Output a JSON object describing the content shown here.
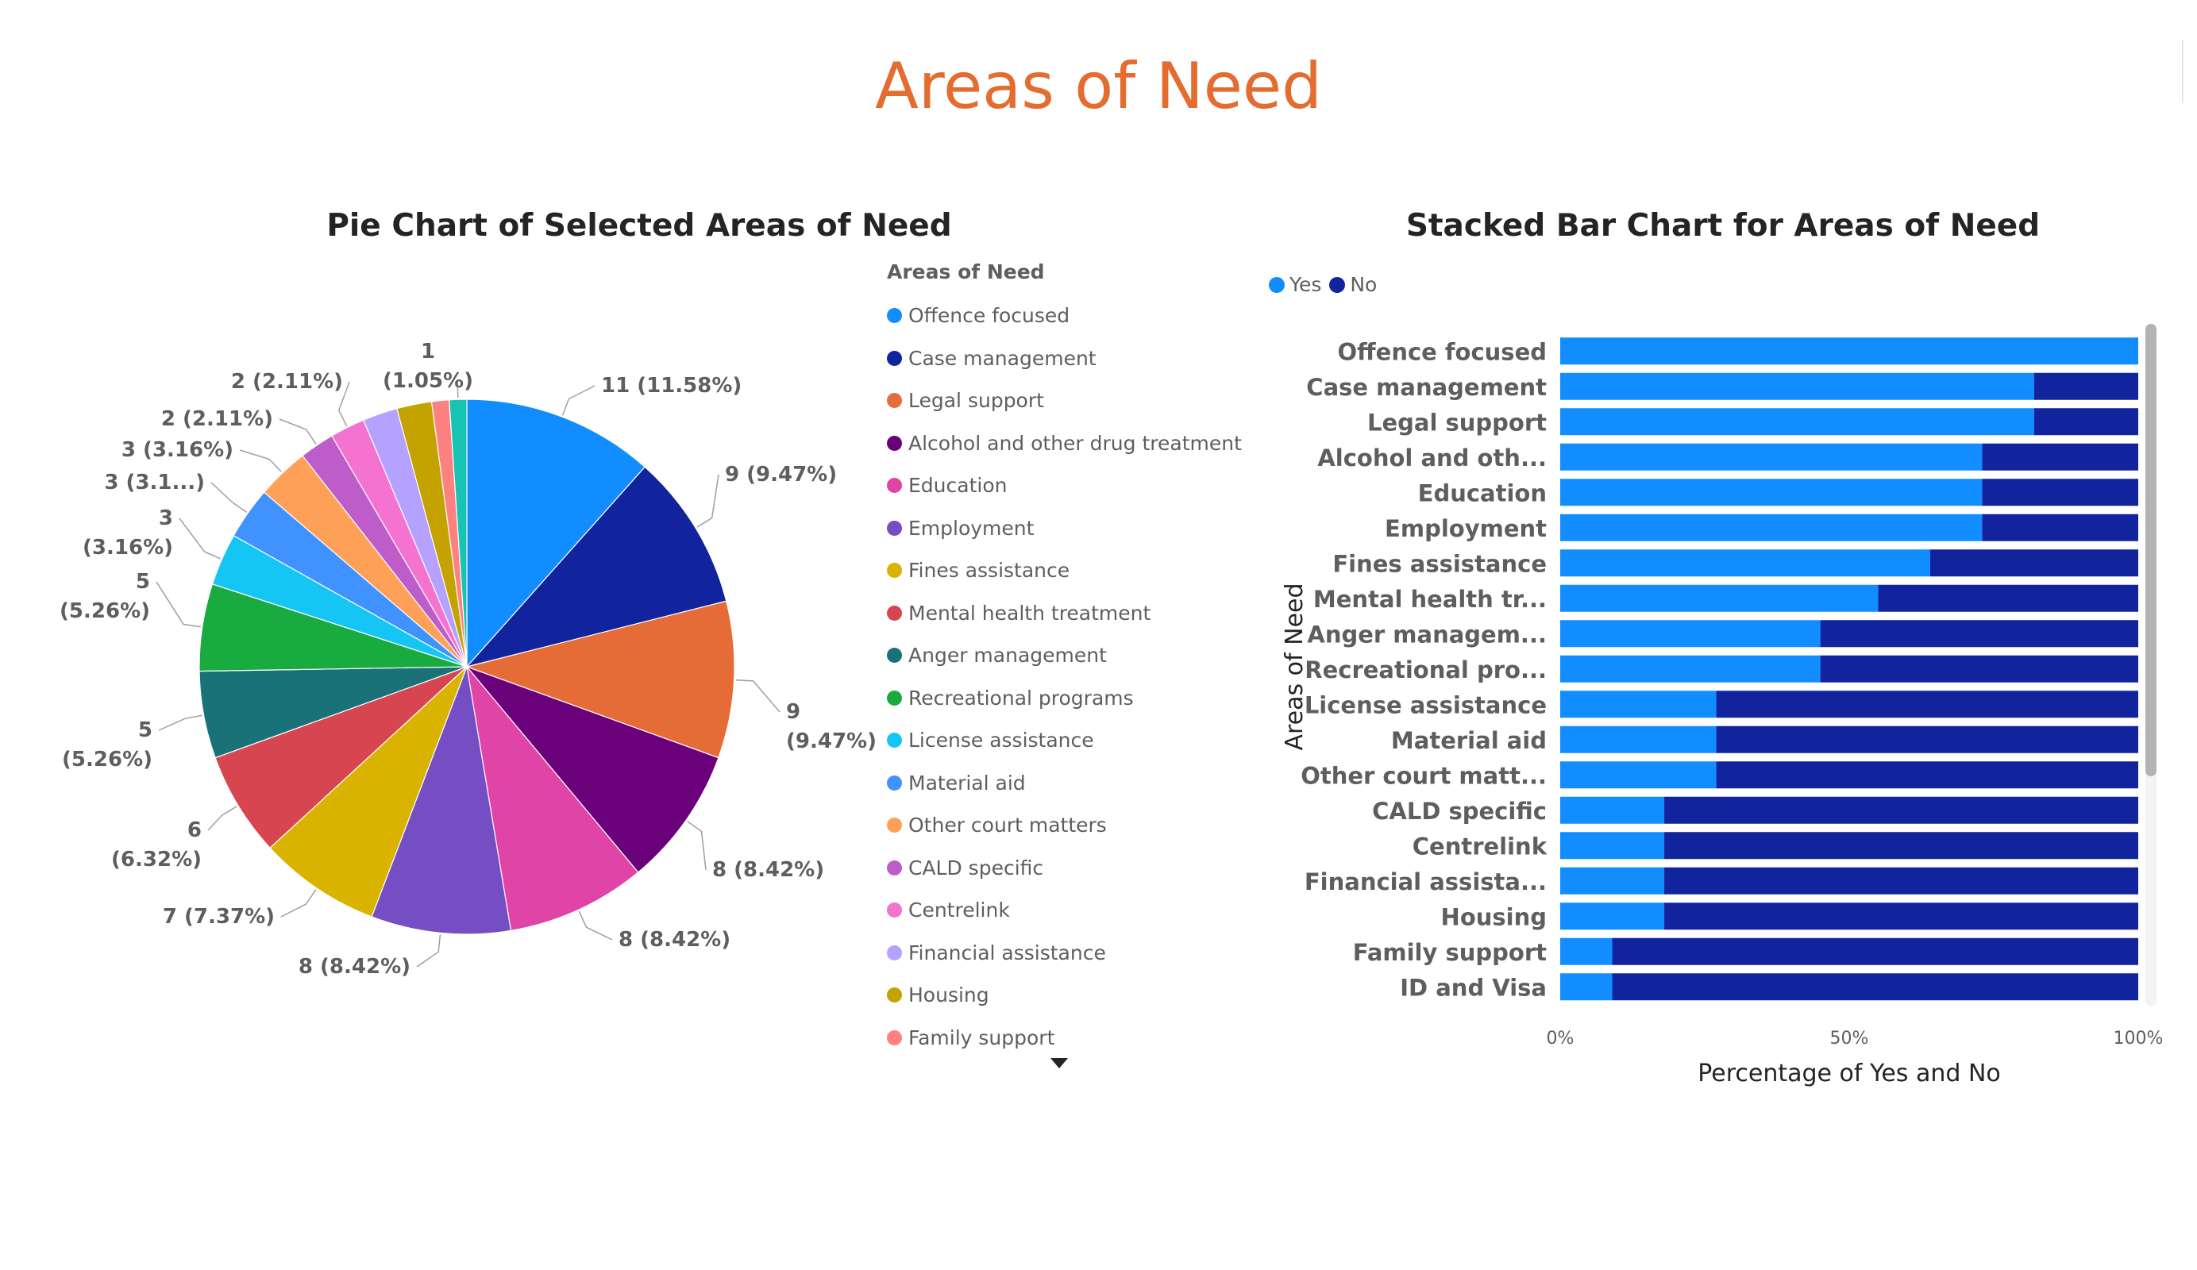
{
  "page": {
    "title": "Areas of Need"
  },
  "colors": {
    "title": "#E46C2F",
    "yes": "#118DFF",
    "no": "#12239E",
    "text": "#252423",
    "muted": "#605E5C"
  },
  "pie": {
    "title": "Pie Chart of Selected Areas of Need",
    "legend_title": "Areas of Need",
    "legend_items": [
      {
        "label": "Offence focused",
        "color": "#118DFF"
      },
      {
        "label": "Case management",
        "color": "#12239E"
      },
      {
        "label": "Legal support",
        "color": "#E66C37"
      },
      {
        "label": "Alcohol and other drug treatment",
        "color": "#6B007B"
      },
      {
        "label": "Education",
        "color": "#E044A7"
      },
      {
        "label": "Employment",
        "color": "#744EC2"
      },
      {
        "label": "Fines assistance",
        "color": "#D9B300"
      },
      {
        "label": "Mental health treatment",
        "color": "#D64550"
      },
      {
        "label": "Anger management",
        "color": "#197278"
      },
      {
        "label": "Recreational programs",
        "color": "#1AAB40"
      },
      {
        "label": "License assistance",
        "color": "#15C6F4"
      },
      {
        "label": "Material aid",
        "color": "#4092FF"
      },
      {
        "label": "Other court matters",
        "color": "#FFA058"
      },
      {
        "label": "CALD specific",
        "color": "#BE5DC9"
      },
      {
        "label": "Centrelink",
        "color": "#F472D0"
      },
      {
        "label": "Financial assistance",
        "color": "#B5A1FF"
      },
      {
        "label": "Housing",
        "color": "#C4A200"
      },
      {
        "label": "Family support",
        "color": "#FF8080"
      }
    ]
  },
  "bar": {
    "title": "Stacked Bar Chart for Areas of Need",
    "legend": [
      {
        "label": "Yes"
      },
      {
        "label": "No"
      }
    ]
  },
  "chart_data": [
    {
      "type": "pie",
      "title": "Pie Chart of Selected Areas of Need",
      "legend_title": "Areas of Need",
      "slices": [
        {
          "label": "Offence focused",
          "value": 11,
          "percent": "11.58%",
          "data_label": "11 (11.58%)",
          "color": "#118DFF"
        },
        {
          "label": "Case management",
          "value": 9,
          "percent": "9.47%",
          "data_label": "9 (9.47%)",
          "color": "#12239E"
        },
        {
          "label": "Legal support",
          "value": 9,
          "percent": "9.47%",
          "data_label": "9 (9.47%)",
          "color": "#E66C37"
        },
        {
          "label": "Alcohol and other drug treatment",
          "value": 8,
          "percent": "8.42%",
          "data_label": "8 (8.42%)",
          "color": "#6B007B"
        },
        {
          "label": "Education",
          "value": 8,
          "percent": "8.42%",
          "data_label": "8 (8.42%)",
          "color": "#E044A7"
        },
        {
          "label": "Employment",
          "value": 8,
          "percent": "8.42%",
          "data_label": "8 (8.42%)",
          "color": "#744EC2"
        },
        {
          "label": "Fines assistance",
          "value": 7,
          "percent": "7.37%",
          "data_label": "7 (7.37%)",
          "color": "#D9B300"
        },
        {
          "label": "Mental health treatment",
          "value": 6,
          "percent": "6.32%",
          "data_label": "6 (6.32%)",
          "color": "#D64550"
        },
        {
          "label": "Anger management",
          "value": 5,
          "percent": "5.26%",
          "data_label": "5 (5.26%)",
          "color": "#197278"
        },
        {
          "label": "Recreational programs",
          "value": 5,
          "percent": "5.26%",
          "data_label": "5 (5.26%)",
          "color": "#1AAB40"
        },
        {
          "label": "License assistance",
          "value": 3,
          "percent": "3.16%",
          "data_label": "3 (3.16%)",
          "color": "#15C6F4"
        },
        {
          "label": "Material aid",
          "value": 3,
          "percent": "3.16%",
          "data_label": "3 (3.1...)",
          "color": "#4092FF"
        },
        {
          "label": "Other court matters",
          "value": 3,
          "percent": "3.16%",
          "data_label": "3 (3.16%)",
          "color": "#FFA058"
        },
        {
          "label": "CALD specific",
          "value": 2,
          "percent": "2.11%",
          "data_label": "2 (2.11%)",
          "color": "#BE5DC9"
        },
        {
          "label": "Centrelink",
          "value": 2,
          "percent": "2.11%",
          "data_label": "2 (2.11%)",
          "color": "#F472D0"
        },
        {
          "label": "Financial assistance",
          "value": 2,
          "percent": "2.11%",
          "data_label": "",
          "color": "#B5A1FF"
        },
        {
          "label": "Housing",
          "value": 2,
          "percent": "2.11%",
          "data_label": "",
          "color": "#C4A200"
        },
        {
          "label": "Family support",
          "value": 1,
          "percent": "1.05%",
          "data_label": "",
          "color": "#FF8080"
        },
        {
          "label": "ID and Visa",
          "value": 1,
          "percent": "1.05%",
          "data_label": "1 (1.05%)",
          "color": "#17C3B2"
        }
      ]
    },
    {
      "type": "bar",
      "orientation": "horizontal",
      "stacked": "100%",
      "title": "Stacked Bar Chart for Areas of Need",
      "xlabel": "Percentage of Yes and No",
      "ylabel": "Areas of Need",
      "x_ticks": [
        "0%",
        "50%",
        "100%"
      ],
      "xlim": [
        0,
        100
      ],
      "legend": "top-left",
      "categories": [
        "Offence focused",
        "Case management",
        "Legal support",
        "Alcohol and oth...",
        "Education",
        "Employment",
        "Fines assistance",
        "Mental health tr...",
        "Anger managem...",
        "Recreational pro...",
        "License assistance",
        "Material aid",
        "Other court matt...",
        "CALD specific",
        "Centrelink",
        "Financial assista...",
        "Housing",
        "Family support",
        "ID and Visa"
      ],
      "series": [
        {
          "name": "Yes",
          "color": "#118DFF",
          "values": [
            100,
            82,
            82,
            73,
            73,
            73,
            64,
            55,
            45,
            45,
            27,
            27,
            27,
            18,
            18,
            18,
            18,
            9,
            9
          ]
        },
        {
          "name": "No",
          "color": "#12239E",
          "values": [
            0,
            18,
            18,
            27,
            27,
            27,
            36,
            45,
            55,
            55,
            73,
            73,
            73,
            82,
            82,
            82,
            82,
            91,
            91
          ]
        }
      ]
    }
  ]
}
